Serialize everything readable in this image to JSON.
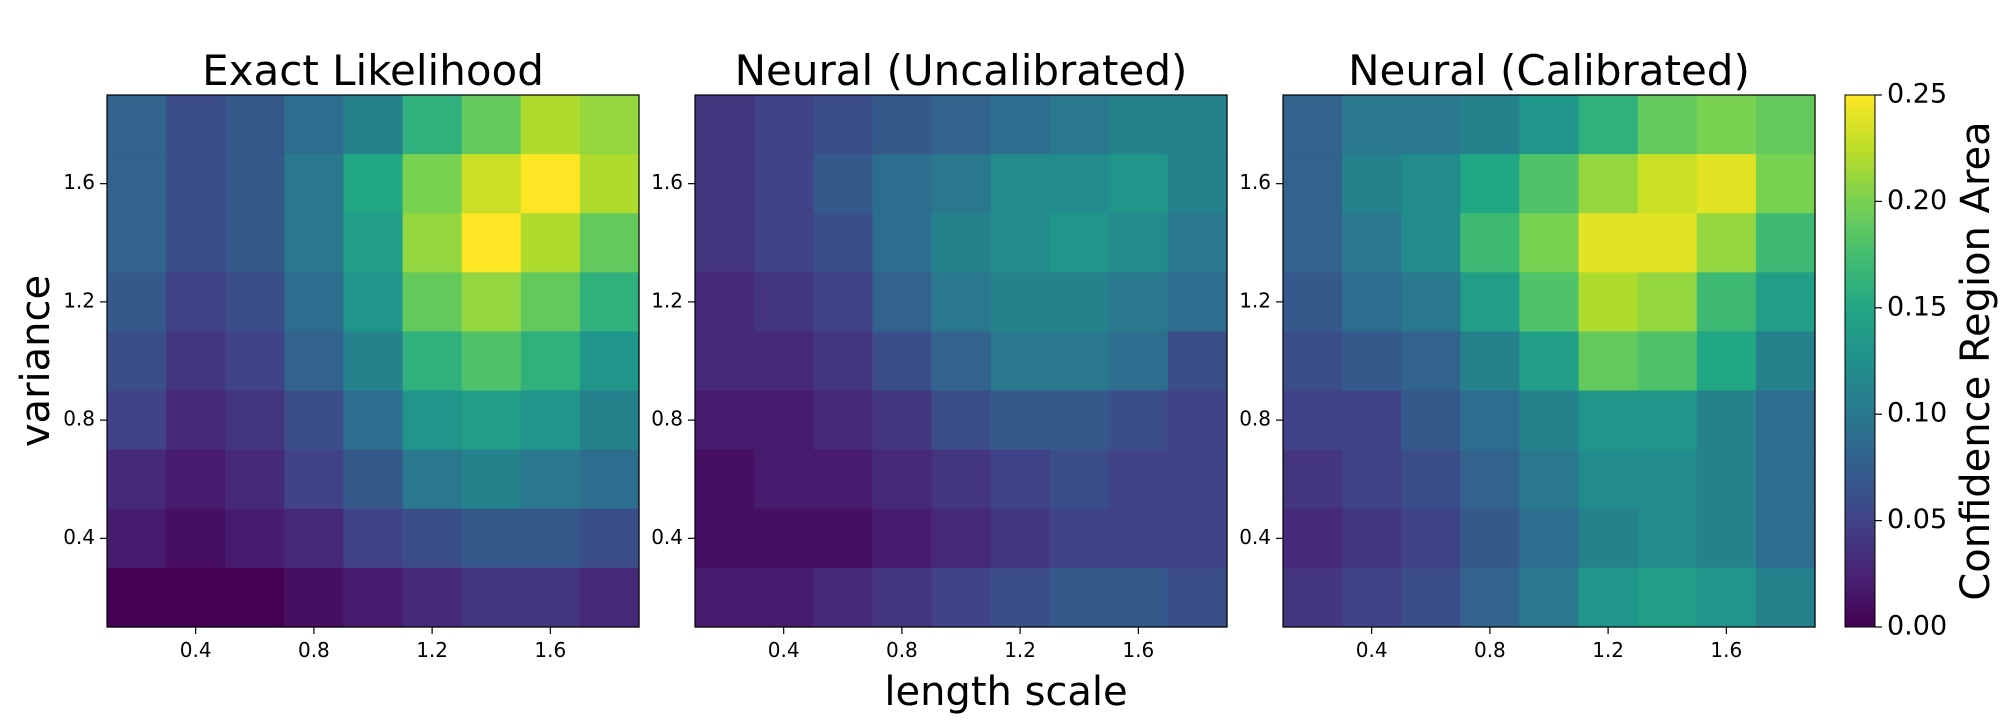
{
  "chart_data": {
    "type": "heatmap",
    "panels": [
      {
        "title": "Exact Likelihood",
        "values": [
          [
            0.08,
            0.06,
            0.07,
            0.09,
            0.11,
            0.16,
            0.19,
            0.22,
            0.21
          ],
          [
            0.08,
            0.06,
            0.07,
            0.1,
            0.15,
            0.2,
            0.23,
            0.25,
            0.22
          ],
          [
            0.08,
            0.06,
            0.07,
            0.1,
            0.14,
            0.21,
            0.25,
            0.22,
            0.19
          ],
          [
            0.07,
            0.05,
            0.06,
            0.09,
            0.13,
            0.19,
            0.21,
            0.19,
            0.16
          ],
          [
            0.06,
            0.04,
            0.05,
            0.08,
            0.11,
            0.16,
            0.18,
            0.16,
            0.13
          ],
          [
            0.05,
            0.03,
            0.04,
            0.06,
            0.09,
            0.13,
            0.14,
            0.13,
            0.11
          ],
          [
            0.03,
            0.02,
            0.03,
            0.05,
            0.07,
            0.1,
            0.11,
            0.1,
            0.09
          ],
          [
            0.02,
            0.01,
            0.02,
            0.03,
            0.05,
            0.06,
            0.07,
            0.07,
            0.06
          ],
          [
            0.0,
            0.0,
            0.0,
            0.01,
            0.02,
            0.03,
            0.04,
            0.04,
            0.03
          ]
        ]
      },
      {
        "title": "Neural (Uncalibrated)",
        "values": [
          [
            0.04,
            0.05,
            0.06,
            0.07,
            0.08,
            0.09,
            0.1,
            0.11,
            0.11
          ],
          [
            0.04,
            0.05,
            0.07,
            0.09,
            0.1,
            0.12,
            0.12,
            0.13,
            0.11
          ],
          [
            0.04,
            0.05,
            0.06,
            0.09,
            0.11,
            0.12,
            0.13,
            0.12,
            0.1
          ],
          [
            0.03,
            0.04,
            0.05,
            0.08,
            0.1,
            0.11,
            0.11,
            0.1,
            0.09
          ],
          [
            0.03,
            0.03,
            0.04,
            0.06,
            0.08,
            0.1,
            0.1,
            0.09,
            0.06
          ],
          [
            0.02,
            0.02,
            0.03,
            0.04,
            0.06,
            0.07,
            0.07,
            0.06,
            0.05
          ],
          [
            0.01,
            0.02,
            0.02,
            0.03,
            0.04,
            0.05,
            0.06,
            0.05,
            0.05
          ],
          [
            0.01,
            0.01,
            0.01,
            0.02,
            0.03,
            0.04,
            0.05,
            0.05,
            0.05
          ],
          [
            0.02,
            0.02,
            0.03,
            0.04,
            0.05,
            0.06,
            0.07,
            0.07,
            0.06
          ]
        ]
      },
      {
        "title": "Neural (Calibrated)",
        "values": [
          [
            0.08,
            0.1,
            0.1,
            0.11,
            0.13,
            0.16,
            0.19,
            0.2,
            0.19
          ],
          [
            0.08,
            0.11,
            0.12,
            0.15,
            0.18,
            0.21,
            0.23,
            0.24,
            0.2
          ],
          [
            0.08,
            0.1,
            0.12,
            0.17,
            0.2,
            0.24,
            0.24,
            0.21,
            0.17
          ],
          [
            0.07,
            0.09,
            0.1,
            0.14,
            0.18,
            0.22,
            0.21,
            0.17,
            0.14
          ],
          [
            0.06,
            0.07,
            0.08,
            0.11,
            0.14,
            0.19,
            0.18,
            0.15,
            0.11
          ],
          [
            0.05,
            0.05,
            0.07,
            0.09,
            0.11,
            0.13,
            0.13,
            0.11,
            0.09
          ],
          [
            0.04,
            0.05,
            0.06,
            0.08,
            0.1,
            0.12,
            0.12,
            0.11,
            0.09
          ],
          [
            0.03,
            0.04,
            0.05,
            0.07,
            0.09,
            0.11,
            0.12,
            0.11,
            0.09
          ],
          [
            0.04,
            0.05,
            0.06,
            0.08,
            0.1,
            0.13,
            0.14,
            0.13,
            0.11
          ]
        ]
      }
    ],
    "row_order": "top-to-bottom",
    "x_range": [
      0.1,
      1.9
    ],
    "y_range": [
      0.1,
      1.9
    ],
    "xticks": [
      "0.4",
      "0.8",
      "1.2",
      "1.6"
    ],
    "yticks": [
      "0.4",
      "0.8",
      "1.2",
      "1.6"
    ],
    "tick_values": [
      0.4,
      0.8,
      1.2,
      1.6
    ],
    "xlabel": "length scale",
    "ylabel": "variance",
    "colorbar": {
      "label": "Confidence Region Area",
      "range": [
        0.0,
        0.25
      ],
      "ticks": [
        "0.00",
        "0.05",
        "0.10",
        "0.15",
        "0.20",
        "0.25"
      ],
      "tick_values": [
        0.0,
        0.05,
        0.1,
        0.15,
        0.2,
        0.25
      ],
      "colormap": "viridis"
    }
  }
}
